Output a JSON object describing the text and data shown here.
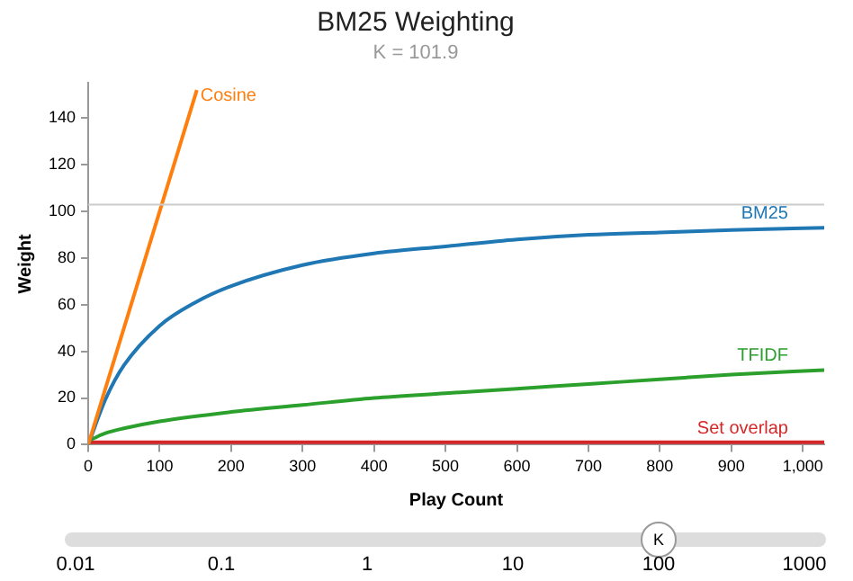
{
  "chart_data": {
    "type": "line",
    "title": "BM25 Weighting",
    "subtitle": "K = 101.9",
    "xlabel": "Play Count",
    "ylabel": "Weight",
    "xlim": [
      0,
      1030
    ],
    "ylim": [
      0,
      155
    ],
    "xticks": [
      0,
      100,
      200,
      300,
      400,
      500,
      600,
      700,
      800,
      900,
      {
        "value": 1000,
        "label": "1,000"
      }
    ],
    "yticks": [
      0,
      20,
      40,
      60,
      80,
      100,
      120,
      140
    ],
    "series": [
      {
        "name": "Cosine",
        "color": "#ff7f0e",
        "x": [
          0,
          152
        ],
        "values": [
          0,
          152
        ]
      },
      {
        "name": "BM25",
        "color": "#1f77b4",
        "x": [
          0,
          25,
          50,
          100,
          150,
          200,
          300,
          400,
          500,
          600,
          700,
          800,
          900,
          1030
        ],
        "values": [
          0,
          20,
          34,
          51,
          61,
          68,
          77,
          82,
          85,
          88,
          90,
          91,
          92,
          93
        ]
      },
      {
        "name": "TFIDF",
        "color": "#2ca02c",
        "x": [
          0,
          1,
          10,
          25,
          50,
          100,
          200,
          300,
          400,
          500,
          600,
          700,
          800,
          900,
          1030
        ],
        "values": [
          0,
          1,
          3,
          5,
          7,
          10,
          14,
          17,
          20,
          22,
          24,
          26,
          28,
          30,
          32
        ]
      },
      {
        "name": "Set overlap",
        "color": "#d62728",
        "x": [
          0,
          1030
        ],
        "values": [
          1,
          1
        ]
      }
    ],
    "ref_lines": [
      {
        "axis": "y",
        "value": 102.9,
        "color": "#cccccc"
      }
    ],
    "grid": false,
    "legend": false,
    "marker": "none",
    "line_style": "solid",
    "annotations": [
      "0.01",
      "0.1",
      "1",
      "10",
      "100",
      "1000",
      "K"
    ]
  }
}
